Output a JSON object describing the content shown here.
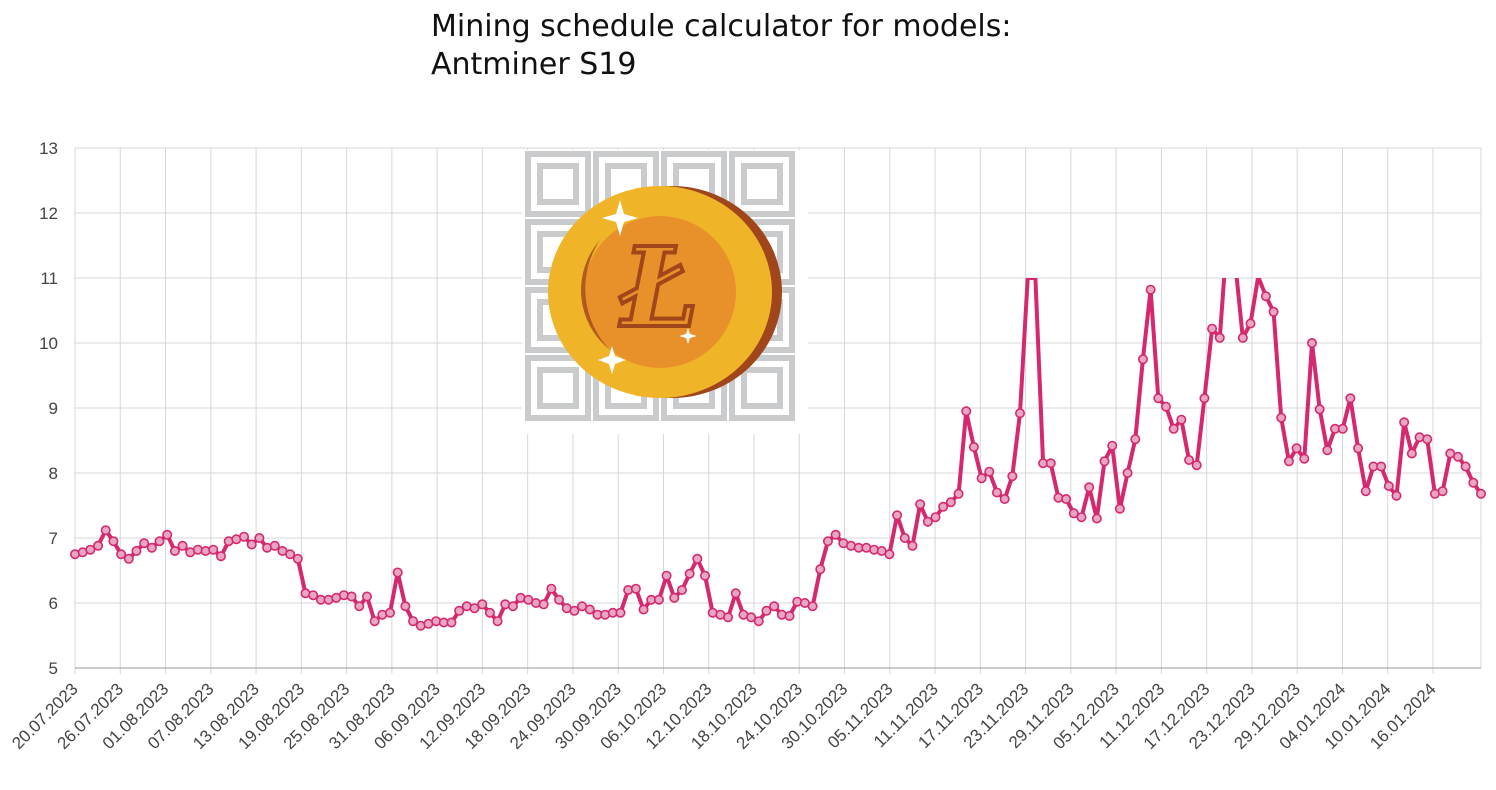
{
  "title": {
    "line1": "Mining schedule calculator for models:",
    "line2": "Antminer S19"
  },
  "logo": {
    "icon": "litecoin-coin-icon",
    "glyph": "Ł"
  },
  "colors": {
    "series": "#d6286e",
    "marker_fill": "#e7a6c3",
    "grid": "#d7d7d7",
    "coin_outer": "#f0b429",
    "coin_inner": "#e8912a",
    "coin_edge": "#a0461a"
  },
  "chart_data": {
    "type": "line",
    "title": "",
    "xlabel": "",
    "ylabel": "",
    "ylim": [
      5,
      13
    ],
    "y_ticks": [
      5,
      6,
      7,
      8,
      9,
      10,
      11,
      12,
      13
    ],
    "grid": true,
    "x_start": "20.07.2023",
    "x_end": "19.01.2024",
    "x_tick_labels": [
      "20.07.2023",
      "26.07.2023",
      "01.08.2023",
      "07.08.2023",
      "13.08.2023",
      "19.08.2023",
      "25.08.2023",
      "31.08.2023",
      "06.09.2023",
      "12.09.2023",
      "18.09.2023",
      "24.09.2023",
      "30.09.2023",
      "06.10.2023",
      "12.10.2023",
      "18.10.2023",
      "24.10.2023",
      "30.10.2023",
      "05.11.2023",
      "11.11.2023",
      "17.11.2023",
      "23.11.2023",
      "29.11.2023",
      "05.12.2023",
      "11.12.2023",
      "17.12.2023",
      "23.12.2023",
      "29.12.2023",
      "04.01.2024",
      "10.01.2024",
      "16.01.2024"
    ],
    "series": [
      {
        "values": [
          6.75,
          6.78,
          6.82,
          6.88,
          7.12,
          6.95,
          6.75,
          6.68,
          6.8,
          6.92,
          6.85,
          6.95,
          7.05,
          6.8,
          6.88,
          6.78,
          6.82,
          6.8,
          6.82,
          6.72,
          6.95,
          6.98,
          7.02,
          6.9,
          7.0,
          6.85,
          6.88,
          6.8,
          6.75,
          6.68,
          6.15,
          6.12,
          6.05,
          6.05,
          6.08,
          6.12,
          6.1,
          5.95,
          6.1,
          5.72,
          5.82,
          5.85,
          6.47,
          5.95,
          5.72,
          5.65,
          5.68,
          5.72,
          5.7,
          5.7,
          5.88,
          5.95,
          5.92,
          5.98,
          5.85,
          5.72,
          5.98,
          5.95,
          6.08,
          6.05,
          6.0,
          5.98,
          6.22,
          6.05,
          5.92,
          5.88,
          5.95,
          5.9,
          5.82,
          5.82,
          5.85,
          5.85,
          6.2,
          6.22,
          5.9,
          6.05,
          6.05,
          6.42,
          6.08,
          6.2,
          6.45,
          6.68,
          6.42,
          5.85,
          5.82,
          5.78,
          6.15,
          5.82,
          5.78,
          5.72,
          5.88,
          5.95,
          5.82,
          5.8,
          6.02,
          6.0,
          5.95,
          6.52,
          6.95,
          7.05,
          6.92,
          6.88,
          6.85,
          6.85,
          6.82,
          6.8,
          6.75,
          7.35,
          7.0,
          6.88,
          7.52,
          7.25,
          7.32,
          7.48,
          7.55,
          7.68,
          8.95,
          8.4,
          7.92,
          8.02,
          7.7,
          7.6,
          7.95,
          8.92,
          11.0,
          11.0,
          8.15,
          8.15,
          7.62,
          7.6,
          7.38,
          7.32,
          7.78,
          7.3,
          8.18,
          8.42,
          7.45,
          8.0,
          8.52,
          9.75,
          10.82,
          9.15,
          9.02,
          8.68,
          8.82,
          8.2,
          8.12,
          9.15,
          10.22,
          10.08,
          11.72,
          11.25,
          10.08,
          10.3,
          11.02,
          10.72,
          10.48,
          8.85,
          8.18,
          8.38,
          8.22,
          10.0,
          8.98,
          8.35,
          8.68,
          8.68,
          9.15,
          8.38,
          7.72,
          8.1,
          8.1,
          7.8,
          7.65,
          8.78,
          8.3,
          8.55,
          8.52,
          7.68,
          7.72,
          8.3,
          8.25,
          8.1,
          7.85,
          7.68
        ]
      }
    ]
  }
}
